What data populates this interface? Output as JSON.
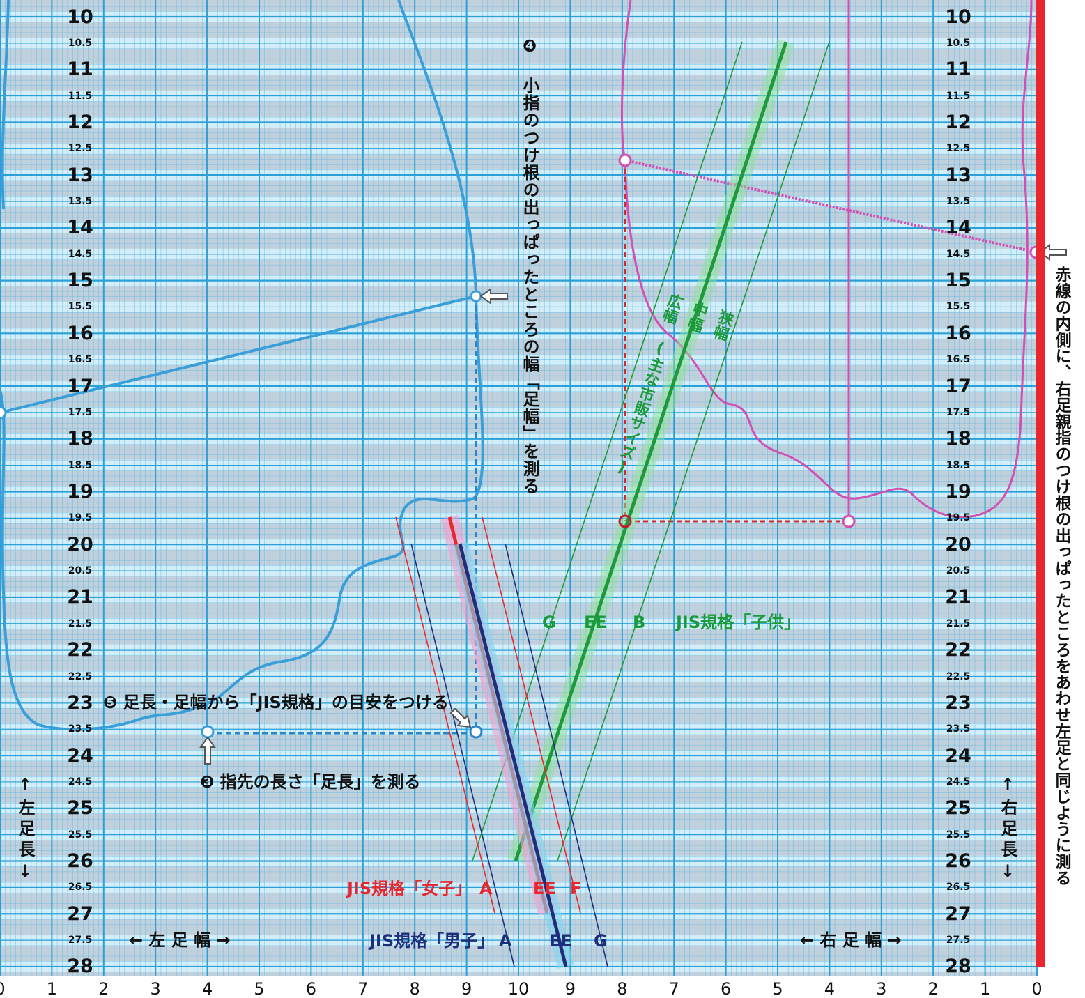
{
  "left_scale": {
    "labels": [
      "10",
      "10.5",
      "11",
      "11.5",
      "12",
      "12.5",
      "13",
      "13.5",
      "14",
      "14.5",
      "15",
      "15.5",
      "16",
      "16.5",
      "17",
      "17.5",
      "18",
      "18.5",
      "19",
      "19.5",
      "20",
      "20.5",
      "21",
      "21.5",
      "22",
      "22.5",
      "23",
      "23.5",
      "24",
      "24.5",
      "25",
      "25.5",
      "26",
      "26.5",
      "27",
      "27.5",
      "28"
    ]
  },
  "right_scale": {
    "labels": [
      "10",
      "10.5",
      "11",
      "11.5",
      "12",
      "12.5",
      "13",
      "13.5",
      "14",
      "14.5",
      "15",
      "15.5",
      "16",
      "16.5",
      "17",
      "17.5",
      "18",
      "18.5",
      "19",
      "19.5",
      "20",
      "20.5",
      "21",
      "21.5",
      "22",
      "22.5",
      "23",
      "23.5",
      "24",
      "24.5",
      "25",
      "25.5",
      "26",
      "26.5",
      "27",
      "27.5",
      "28"
    ]
  },
  "bottom_scale": {
    "labels": [
      "0",
      "1",
      "2",
      "3",
      "4",
      "5",
      "6",
      "7",
      "8",
      "9",
      "10",
      "9",
      "8",
      "7",
      "6",
      "5",
      "4",
      "3",
      "2",
      "1",
      "0"
    ]
  },
  "left_length_label": "↑左足長↓",
  "right_length_label": "↑右足長↓",
  "left_width_label": "← 左 足 幅 →",
  "right_width_label": "← 右 足 幅 →",
  "steps": [
    "❸ 指先の長さ「足長」を測る",
    "❹ 小指のつけ根の出っぱったところの幅「足幅」を測る",
    "❺ 足長・足幅から「JIS規格」の目安をつける"
  ],
  "right_instruction": "赤線の内側に、右足親指のつけ根の出っぱったところをあわせ左足と同じように測る",
  "jis_child": {
    "title": "JIS規格「子供」",
    "widths": [
      "G",
      "EE",
      "B"
    ],
    "bands": [
      "広幅",
      "中幅",
      "狭幅"
    ],
    "note": "(主な市販サイズ)"
  },
  "jis_women": {
    "title": "JIS規格「女子」",
    "widths": [
      "A",
      "EE",
      "F"
    ]
  },
  "jis_men": {
    "title": "JIS規格「男子」",
    "widths": [
      "A",
      "EE",
      "G"
    ]
  }
}
